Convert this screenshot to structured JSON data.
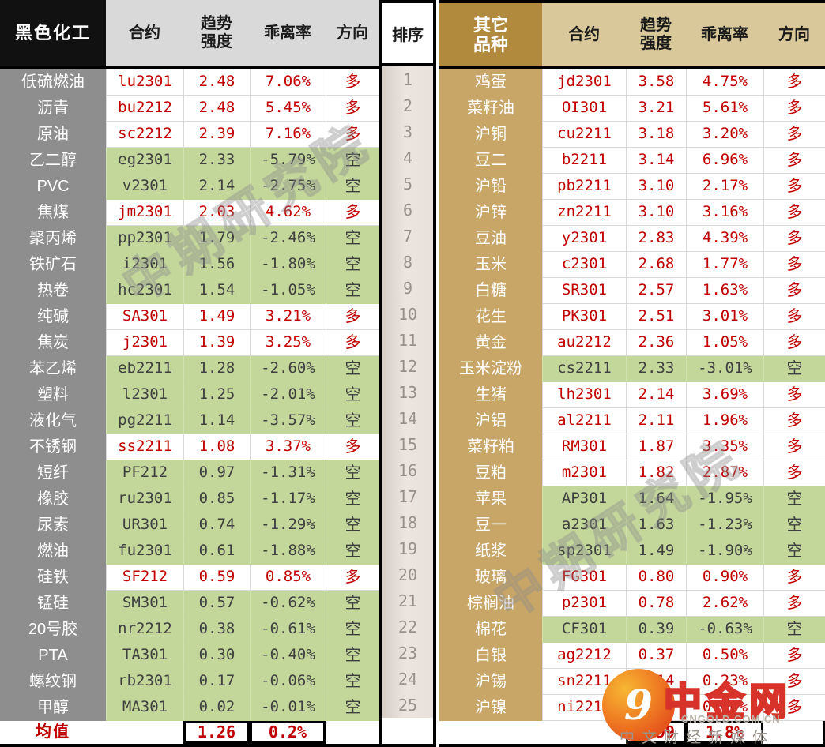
{
  "left_table": {
    "title": "黑色化工",
    "headers": {
      "contract": "合约",
      "trend1": "趋势",
      "trend2": "强度",
      "deviation": "乖离率",
      "direction": "方向"
    },
    "rows": [
      {
        "name": "低硫燃油",
        "contract": "lu2301",
        "trend": "2.48",
        "deviation": "7.06%",
        "direction": "多",
        "side": "long"
      },
      {
        "name": "沥青",
        "contract": "bu2212",
        "trend": "2.48",
        "deviation": "5.45%",
        "direction": "多",
        "side": "long"
      },
      {
        "name": "原油",
        "contract": "sc2212",
        "trend": "2.39",
        "deviation": "7.16%",
        "direction": "多",
        "side": "long"
      },
      {
        "name": "乙二醇",
        "contract": "eg2301",
        "trend": "2.33",
        "deviation": "-5.79%",
        "direction": "空",
        "side": "short"
      },
      {
        "name": "PVC",
        "contract": "v2301",
        "trend": "2.14",
        "deviation": "-2.75%",
        "direction": "空",
        "side": "short"
      },
      {
        "name": "焦煤",
        "contract": "jm2301",
        "trend": "2.03",
        "deviation": "4.62%",
        "direction": "多",
        "side": "long"
      },
      {
        "name": "聚丙烯",
        "contract": "pp2301",
        "trend": "1.79",
        "deviation": "-2.46%",
        "direction": "空",
        "side": "short"
      },
      {
        "name": "铁矿石",
        "contract": "i2301",
        "trend": "1.56",
        "deviation": "-1.80%",
        "direction": "空",
        "side": "short"
      },
      {
        "name": "热卷",
        "contract": "hc2301",
        "trend": "1.54",
        "deviation": "-1.05%",
        "direction": "空",
        "side": "short"
      },
      {
        "name": "纯碱",
        "contract": "SA301",
        "trend": "1.49",
        "deviation": "3.21%",
        "direction": "多",
        "side": "long"
      },
      {
        "name": "焦炭",
        "contract": "j2301",
        "trend": "1.39",
        "deviation": "3.25%",
        "direction": "多",
        "side": "long"
      },
      {
        "name": "苯乙烯",
        "contract": "eb2211",
        "trend": "1.28",
        "deviation": "-2.60%",
        "direction": "空",
        "side": "short"
      },
      {
        "name": "塑料",
        "contract": "l2301",
        "trend": "1.25",
        "deviation": "-2.01%",
        "direction": "空",
        "side": "short"
      },
      {
        "name": "液化气",
        "contract": "pg2211",
        "trend": "1.14",
        "deviation": "-3.57%",
        "direction": "空",
        "side": "short"
      },
      {
        "name": "不锈钢",
        "contract": "ss2211",
        "trend": "1.08",
        "deviation": "3.37%",
        "direction": "多",
        "side": "long"
      },
      {
        "name": "短纤",
        "contract": "PF212",
        "trend": "0.97",
        "deviation": "-1.31%",
        "direction": "空",
        "side": "short"
      },
      {
        "name": "橡胶",
        "contract": "ru2301",
        "trend": "0.85",
        "deviation": "-1.17%",
        "direction": "空",
        "side": "short"
      },
      {
        "name": "尿素",
        "contract": "UR301",
        "trend": "0.74",
        "deviation": "-1.29%",
        "direction": "空",
        "side": "short"
      },
      {
        "name": "燃油",
        "contract": "fu2301",
        "trend": "0.61",
        "deviation": "-1.88%",
        "direction": "空",
        "side": "short"
      },
      {
        "name": "硅铁",
        "contract": "SF212",
        "trend": "0.59",
        "deviation": "0.85%",
        "direction": "多",
        "side": "long"
      },
      {
        "name": "锰硅",
        "contract": "SM301",
        "trend": "0.57",
        "deviation": "-0.62%",
        "direction": "空",
        "side": "short"
      },
      {
        "name": "20号胶",
        "contract": "nr2212",
        "trend": "0.38",
        "deviation": "-0.61%",
        "direction": "空",
        "side": "short"
      },
      {
        "name": "PTA",
        "contract": "TA301",
        "trend": "0.30",
        "deviation": "-0.40%",
        "direction": "空",
        "side": "short"
      },
      {
        "name": "螺纹钢",
        "contract": "rb2301",
        "trend": "0.17",
        "deviation": "-0.06%",
        "direction": "空",
        "side": "short"
      },
      {
        "name": "甲醇",
        "contract": "MA301",
        "trend": "0.02",
        "deviation": "-0.01%",
        "direction": "空",
        "side": "short"
      }
    ],
    "mean": {
      "label": "均值",
      "trend": "1.26",
      "deviation": "0.2%"
    }
  },
  "rank": {
    "header": "排序",
    "values": [
      "1",
      "2",
      "3",
      "4",
      "5",
      "6",
      "7",
      "8",
      "9",
      "10",
      "11",
      "12",
      "13",
      "14",
      "15",
      "16",
      "17",
      "18",
      "19",
      "20",
      "21",
      "22",
      "23",
      "24",
      "25"
    ]
  },
  "right_table": {
    "title1": "其它",
    "title2": "品种",
    "headers": {
      "contract": "合约",
      "trend1": "趋势",
      "trend2": "强度",
      "deviation": "乖离率",
      "direction": "方向"
    },
    "rows": [
      {
        "name": "鸡蛋",
        "contract": "jd2301",
        "trend": "3.58",
        "deviation": "4.75%",
        "direction": "多",
        "side": "long"
      },
      {
        "name": "菜籽油",
        "contract": "OI301",
        "trend": "3.21",
        "deviation": "5.61%",
        "direction": "多",
        "side": "long"
      },
      {
        "name": "沪铜",
        "contract": "cu2211",
        "trend": "3.18",
        "deviation": "3.20%",
        "direction": "多",
        "side": "long"
      },
      {
        "name": "豆二",
        "contract": "b2211",
        "trend": "3.14",
        "deviation": "6.96%",
        "direction": "多",
        "side": "long"
      },
      {
        "name": "沪铅",
        "contract": "pb2211",
        "trend": "3.10",
        "deviation": "2.17%",
        "direction": "多",
        "side": "long"
      },
      {
        "name": "沪锌",
        "contract": "zn2211",
        "trend": "3.10",
        "deviation": "3.16%",
        "direction": "多",
        "side": "long"
      },
      {
        "name": "豆油",
        "contract": "y2301",
        "trend": "2.83",
        "deviation": "4.39%",
        "direction": "多",
        "side": "long"
      },
      {
        "name": "玉米",
        "contract": "c2301",
        "trend": "2.68",
        "deviation": "1.77%",
        "direction": "多",
        "side": "long"
      },
      {
        "name": "白糖",
        "contract": "SR301",
        "trend": "2.57",
        "deviation": "1.63%",
        "direction": "多",
        "side": "long"
      },
      {
        "name": "花生",
        "contract": "PK301",
        "trend": "2.51",
        "deviation": "3.01%",
        "direction": "多",
        "side": "long"
      },
      {
        "name": "黄金",
        "contract": "au2212",
        "trend": "2.36",
        "deviation": "1.05%",
        "direction": "多",
        "side": "long"
      },
      {
        "name": "玉米淀粉",
        "contract": "cs2211",
        "trend": "2.33",
        "deviation": "-3.01%",
        "direction": "空",
        "side": "short"
      },
      {
        "name": "生猪",
        "contract": "lh2301",
        "trend": "2.14",
        "deviation": "3.69%",
        "direction": "多",
        "side": "long"
      },
      {
        "name": "沪铝",
        "contract": "al2211",
        "trend": "2.11",
        "deviation": "1.96%",
        "direction": "多",
        "side": "long"
      },
      {
        "name": "菜籽粕",
        "contract": "RM301",
        "trend": "1.87",
        "deviation": "3.35%",
        "direction": "多",
        "side": "long"
      },
      {
        "name": "豆粕",
        "contract": "m2301",
        "trend": "1.82",
        "deviation": "2.87%",
        "direction": "多",
        "side": "long"
      },
      {
        "name": "苹果",
        "contract": "AP301",
        "trend": "1.64",
        "deviation": "-1.95%",
        "direction": "空",
        "side": "short"
      },
      {
        "name": "豆一",
        "contract": "a2301",
        "trend": "1.63",
        "deviation": "-1.23%",
        "direction": "空",
        "side": "short"
      },
      {
        "name": "纸浆",
        "contract": "sp2301",
        "trend": "1.49",
        "deviation": "-1.90%",
        "direction": "空",
        "side": "short"
      },
      {
        "name": "玻璃",
        "contract": "FG301",
        "trend": "0.80",
        "deviation": "0.90%",
        "direction": "多",
        "side": "long"
      },
      {
        "name": "棕榈油",
        "contract": "p2301",
        "trend": "0.78",
        "deviation": "2.62%",
        "direction": "多",
        "side": "long"
      },
      {
        "name": "棉花",
        "contract": "CF301",
        "trend": "0.39",
        "deviation": "-0.63%",
        "direction": "空",
        "side": "short"
      },
      {
        "name": "白银",
        "contract": "ag2212",
        "trend": "0.37",
        "deviation": "0.50%",
        "direction": "多",
        "side": "long"
      },
      {
        "name": "沪锡",
        "contract": "sn2211",
        "trend": "0.14",
        "deviation": "0.23%",
        "direction": "多",
        "side": "long"
      },
      {
        "name": "沪镍",
        "contract": "ni2211",
        "trend": "0.10",
        "deviation": "0.06%",
        "direction": "多",
        "side": "long"
      }
    ],
    "mean": {
      "trend": "1.99",
      "deviation": "1.8%"
    }
  },
  "watermarks": {
    "diagonal": "中期研究院",
    "logo_glyph": "9",
    "logo_text": "中金网",
    "logo_domain": "CNGOLD.COM.CN",
    "logo_tagline": "中文财经新媒体"
  },
  "colors": {
    "long_red": "#c00000",
    "short_green_bg": "#c4d79b",
    "left_name_bg": "#8e8e8e",
    "left_title_bg": "#111111",
    "left_header_bg": "#d9d9d9",
    "right_name_bg": "#c8a667",
    "right_title_bg": "#b28a3e",
    "right_header_bg": "#d9c89a"
  }
}
